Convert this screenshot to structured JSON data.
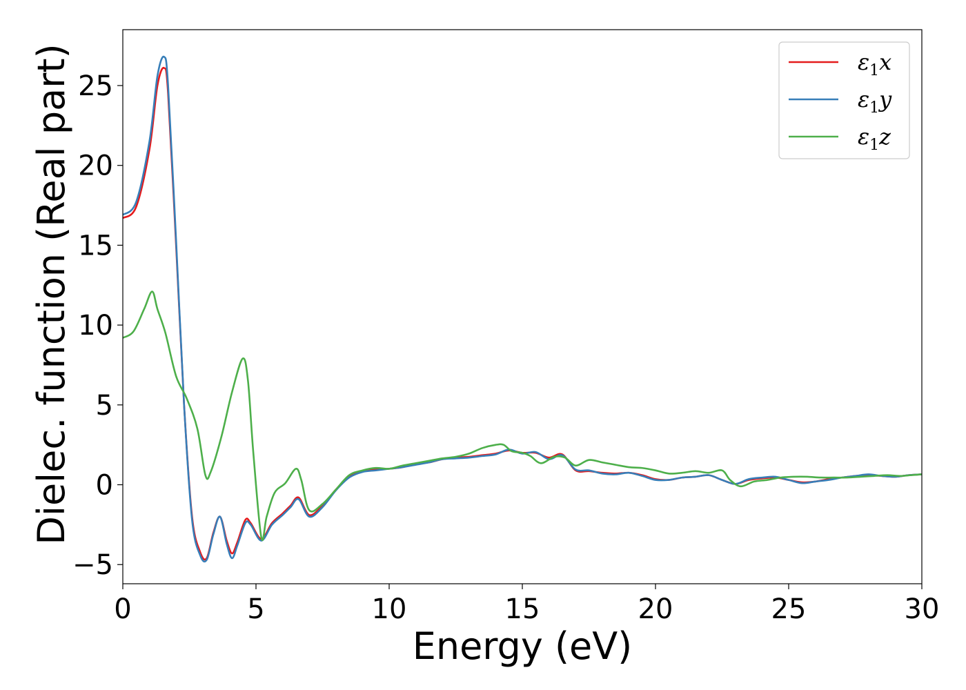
{
  "chart_data": {
    "type": "line",
    "title": "",
    "xlabel": "Energy (eV)",
    "ylabel": "Dielec. function (Real part)",
    "xlim": [
      0,
      30
    ],
    "ylim": [
      -6.2,
      28.5
    ],
    "xticks": [
      0,
      5,
      10,
      15,
      20,
      25,
      30
    ],
    "yticks": [
      -5,
      0,
      5,
      10,
      15,
      20,
      25
    ],
    "ytick_labels": [
      "−5",
      "0",
      "5",
      "10",
      "15",
      "20",
      "25"
    ],
    "grid": false,
    "legend_position": "top-right",
    "series": [
      {
        "name": "ε1x",
        "legend_base": "ε",
        "legend_sub": "1",
        "legend_var": "x",
        "color": "#e41a1c",
        "points": [
          [
            0,
            16.7
          ],
          [
            0.5,
            17.4
          ],
          [
            1.0,
            21.0
          ],
          [
            1.3,
            25.0
          ],
          [
            1.55,
            26.1
          ],
          [
            1.7,
            24.5
          ],
          [
            2.0,
            15.0
          ],
          [
            2.3,
            5.0
          ],
          [
            2.6,
            -2.0
          ],
          [
            2.9,
            -4.2
          ],
          [
            3.15,
            -4.6
          ],
          [
            3.4,
            -3.0
          ],
          [
            3.65,
            -2.0
          ],
          [
            3.9,
            -3.5
          ],
          [
            4.1,
            -4.3
          ],
          [
            4.3,
            -3.6
          ],
          [
            4.6,
            -2.2
          ],
          [
            4.8,
            -2.4
          ],
          [
            5.2,
            -3.4
          ],
          [
            5.6,
            -2.4
          ],
          [
            6.0,
            -1.8
          ],
          [
            6.3,
            -1.3
          ],
          [
            6.6,
            -0.8
          ],
          [
            7.0,
            -1.9
          ],
          [
            7.5,
            -1.3
          ],
          [
            8.0,
            -0.3
          ],
          [
            8.5,
            0.5
          ],
          [
            9.0,
            0.85
          ],
          [
            9.5,
            0.95
          ],
          [
            10.0,
            1.0
          ],
          [
            10.5,
            1.1
          ],
          [
            11.0,
            1.3
          ],
          [
            11.5,
            1.4
          ],
          [
            12.0,
            1.6
          ],
          [
            12.5,
            1.7
          ],
          [
            13.0,
            1.75
          ],
          [
            13.5,
            1.85
          ],
          [
            14.0,
            1.95
          ],
          [
            14.5,
            2.15
          ],
          [
            15.0,
            2.0
          ],
          [
            15.5,
            2.0
          ],
          [
            16.0,
            1.7
          ],
          [
            16.5,
            1.9
          ],
          [
            17.0,
            0.9
          ],
          [
            17.5,
            0.85
          ],
          [
            18.0,
            0.75
          ],
          [
            18.5,
            0.7
          ],
          [
            19.0,
            0.75
          ],
          [
            19.5,
            0.6
          ],
          [
            20.0,
            0.35
          ],
          [
            20.5,
            0.3
          ],
          [
            21.0,
            0.45
          ],
          [
            21.5,
            0.5
          ],
          [
            22.0,
            0.6
          ],
          [
            22.5,
            0.3
          ],
          [
            23.0,
            0.05
          ],
          [
            23.5,
            0.3
          ],
          [
            24.0,
            0.4
          ],
          [
            24.5,
            0.45
          ],
          [
            25.0,
            0.3
          ],
          [
            25.5,
            0.15
          ],
          [
            26.0,
            0.2
          ],
          [
            26.5,
            0.35
          ],
          [
            27.0,
            0.45
          ],
          [
            27.5,
            0.55
          ],
          [
            28.0,
            0.6
          ],
          [
            28.5,
            0.55
          ],
          [
            29.0,
            0.5
          ],
          [
            29.5,
            0.6
          ],
          [
            30.0,
            0.65
          ]
        ]
      },
      {
        "name": "ε1y",
        "legend_base": "ε",
        "legend_sub": "1",
        "legend_var": "y",
        "color": "#377eb8",
        "points": [
          [
            0,
            16.9
          ],
          [
            0.5,
            17.7
          ],
          [
            1.0,
            21.5
          ],
          [
            1.3,
            25.6
          ],
          [
            1.55,
            26.8
          ],
          [
            1.7,
            25.0
          ],
          [
            2.0,
            15.3
          ],
          [
            2.3,
            5.0
          ],
          [
            2.6,
            -2.2
          ],
          [
            2.9,
            -4.4
          ],
          [
            3.15,
            -4.7
          ],
          [
            3.4,
            -3.1
          ],
          [
            3.65,
            -2.0
          ],
          [
            3.9,
            -3.7
          ],
          [
            4.1,
            -4.6
          ],
          [
            4.3,
            -3.8
          ],
          [
            4.6,
            -2.4
          ],
          [
            4.8,
            -2.5
          ],
          [
            5.2,
            -3.5
          ],
          [
            5.6,
            -2.5
          ],
          [
            6.0,
            -1.9
          ],
          [
            6.3,
            -1.4
          ],
          [
            6.6,
            -0.9
          ],
          [
            7.0,
            -2.0
          ],
          [
            7.5,
            -1.4
          ],
          [
            8.0,
            -0.35
          ],
          [
            8.5,
            0.45
          ],
          [
            9.0,
            0.8
          ],
          [
            9.5,
            0.9
          ],
          [
            10.0,
            1.0
          ],
          [
            10.5,
            1.1
          ],
          [
            11.0,
            1.25
          ],
          [
            11.5,
            1.4
          ],
          [
            12.0,
            1.6
          ],
          [
            12.5,
            1.65
          ],
          [
            13.0,
            1.7
          ],
          [
            13.5,
            1.8
          ],
          [
            14.0,
            1.9
          ],
          [
            14.5,
            2.2
          ],
          [
            15.0,
            1.95
          ],
          [
            15.5,
            2.05
          ],
          [
            16.0,
            1.6
          ],
          [
            16.5,
            1.85
          ],
          [
            17.0,
            0.95
          ],
          [
            17.5,
            0.9
          ],
          [
            18.0,
            0.7
          ],
          [
            18.5,
            0.65
          ],
          [
            19.0,
            0.75
          ],
          [
            19.5,
            0.55
          ],
          [
            20.0,
            0.3
          ],
          [
            20.5,
            0.3
          ],
          [
            21.0,
            0.45
          ],
          [
            21.5,
            0.5
          ],
          [
            22.0,
            0.6
          ],
          [
            22.5,
            0.3
          ],
          [
            23.0,
            0.05
          ],
          [
            23.5,
            0.35
          ],
          [
            24.0,
            0.45
          ],
          [
            24.5,
            0.5
          ],
          [
            25.0,
            0.3
          ],
          [
            25.5,
            0.1
          ],
          [
            26.0,
            0.2
          ],
          [
            26.5,
            0.3
          ],
          [
            27.0,
            0.45
          ],
          [
            27.5,
            0.55
          ],
          [
            28.0,
            0.65
          ],
          [
            28.5,
            0.55
          ],
          [
            29.0,
            0.5
          ],
          [
            29.5,
            0.6
          ],
          [
            30.0,
            0.65
          ]
        ]
      },
      {
        "name": "ε1z",
        "legend_base": "ε",
        "legend_sub": "1",
        "legend_var": "z",
        "color": "#4daf4a",
        "points": [
          [
            0,
            9.2
          ],
          [
            0.4,
            9.6
          ],
          [
            0.8,
            11.0
          ],
          [
            1.1,
            12.1
          ],
          [
            1.3,
            11.0
          ],
          [
            1.6,
            9.5
          ],
          [
            2.0,
            6.8
          ],
          [
            2.4,
            5.4
          ],
          [
            2.8,
            3.5
          ],
          [
            3.1,
            0.6
          ],
          [
            3.3,
            0.8
          ],
          [
            3.7,
            3.0
          ],
          [
            4.1,
            5.8
          ],
          [
            4.5,
            7.9
          ],
          [
            4.7,
            6.5
          ],
          [
            4.9,
            2.0
          ],
          [
            5.2,
            -3.3
          ],
          [
            5.4,
            -2.0
          ],
          [
            5.7,
            -0.5
          ],
          [
            6.1,
            0.1
          ],
          [
            6.5,
            1.0
          ],
          [
            6.7,
            0.3
          ],
          [
            7.0,
            -1.6
          ],
          [
            7.5,
            -1.2
          ],
          [
            8.0,
            -0.3
          ],
          [
            8.5,
            0.6
          ],
          [
            9.0,
            0.9
          ],
          [
            9.5,
            1.05
          ],
          [
            10.0,
            1.0
          ],
          [
            10.5,
            1.2
          ],
          [
            11.0,
            1.35
          ],
          [
            11.5,
            1.5
          ],
          [
            12.0,
            1.65
          ],
          [
            12.5,
            1.75
          ],
          [
            13.0,
            1.95
          ],
          [
            13.5,
            2.3
          ],
          [
            14.0,
            2.5
          ],
          [
            14.3,
            2.5
          ],
          [
            14.6,
            2.1
          ],
          [
            15.0,
            2.0
          ],
          [
            15.3,
            1.8
          ],
          [
            15.7,
            1.35
          ],
          [
            16.2,
            1.75
          ],
          [
            16.6,
            1.7
          ],
          [
            17.0,
            1.2
          ],
          [
            17.5,
            1.55
          ],
          [
            18.0,
            1.4
          ],
          [
            18.5,
            1.25
          ],
          [
            19.0,
            1.1
          ],
          [
            19.5,
            1.05
          ],
          [
            20.0,
            0.9
          ],
          [
            20.5,
            0.7
          ],
          [
            21.0,
            0.75
          ],
          [
            21.5,
            0.85
          ],
          [
            22.0,
            0.75
          ],
          [
            22.5,
            0.9
          ],
          [
            22.8,
            0.3
          ],
          [
            23.2,
            -0.1
          ],
          [
            23.7,
            0.2
          ],
          [
            24.2,
            0.3
          ],
          [
            24.7,
            0.45
          ],
          [
            25.2,
            0.5
          ],
          [
            25.7,
            0.5
          ],
          [
            26.2,
            0.45
          ],
          [
            26.7,
            0.45
          ],
          [
            27.2,
            0.45
          ],
          [
            27.7,
            0.5
          ],
          [
            28.2,
            0.55
          ],
          [
            28.7,
            0.6
          ],
          [
            29.2,
            0.55
          ],
          [
            29.6,
            0.6
          ],
          [
            30.0,
            0.65
          ]
        ]
      }
    ]
  }
}
